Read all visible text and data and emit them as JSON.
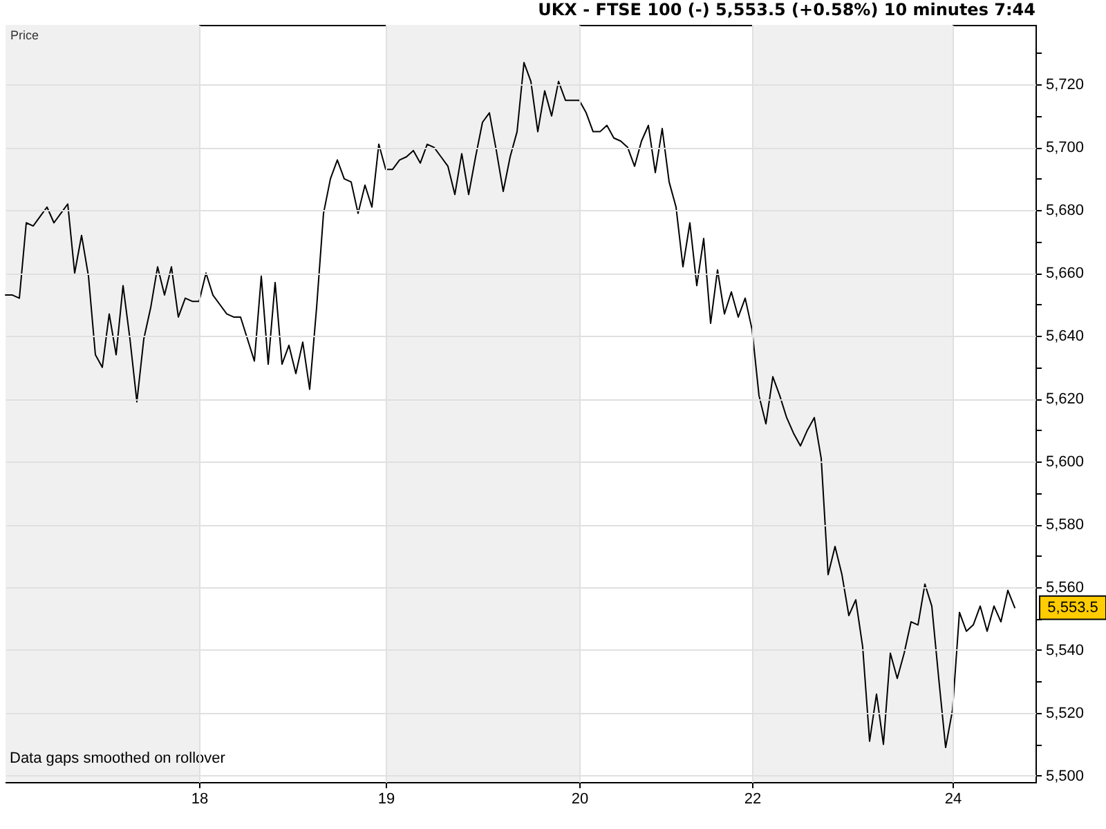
{
  "chart_data": {
    "type": "line",
    "title": "UKX - FTSE 100 (-) 5,553.5 (+0.58%) 10 minutes 7:44",
    "ylabel": "Price",
    "categories": [
      null,
      null,
      null,
      null,
      null,
      null,
      null,
      null,
      null,
      null,
      null,
      null,
      null,
      null,
      null,
      null,
      null,
      null,
      null,
      null,
      null,
      null,
      null,
      null,
      null,
      null,
      null,
      null,
      "18",
      null,
      null,
      null,
      null,
      null,
      null,
      null,
      null,
      null,
      null,
      null,
      null,
      null,
      null,
      null,
      null,
      null,
      null,
      null,
      null,
      null,
      null,
      null,
      null,
      null,
      null,
      "19",
      null,
      null,
      null,
      null,
      null,
      null,
      null,
      null,
      null,
      null,
      null,
      null,
      null,
      null,
      null,
      null,
      null,
      null,
      null,
      null,
      null,
      null,
      null,
      null,
      null,
      null,
      null,
      "20",
      null,
      null,
      null,
      null,
      null,
      null,
      null,
      null,
      null,
      null,
      null,
      null,
      null,
      null,
      null,
      null,
      null,
      null,
      null,
      null,
      null,
      null,
      null,
      null,
      "22",
      null,
      null,
      null,
      null,
      null,
      null,
      null,
      null,
      null,
      null,
      null,
      null,
      null,
      null,
      null,
      null,
      null,
      null,
      null,
      null,
      null,
      null,
      null,
      null,
      null,
      null,
      null,
      null,
      "24",
      null,
      null,
      null,
      null,
      null,
      null,
      null,
      null,
      null,
      null,
      null,
      null
    ],
    "series": [
      {
        "color": "#000000",
        "values": [
          5653,
          5653,
          5652,
          5676,
          5675,
          5678,
          5681,
          5676,
          5679,
          5682,
          5660,
          5672,
          5659,
          5634,
          5630,
          5647,
          5634,
          5656,
          5639,
          5619,
          5639,
          5649,
          5662,
          5653,
          5662,
          5646,
          5652,
          5651,
          5651,
          5660,
          5653,
          5650,
          5647,
          5646,
          5646,
          5639,
          5632,
          5659,
          5631,
          5657,
          5631,
          5637,
          5628,
          5638,
          5623,
          5649,
          5679,
          5690,
          5696,
          5690,
          5689,
          5679,
          5688,
          5681,
          5701,
          5693,
          5693,
          5696,
          5697,
          5699,
          5695,
          5701,
          5700,
          5697,
          5694,
          5685,
          5698,
          5685,
          5697,
          5708,
          5711,
          5699,
          5686,
          5697,
          5705,
          5727,
          5721,
          5705,
          5718,
          5710,
          5721,
          5715,
          5715,
          5715,
          5711,
          5705,
          5705,
          5707,
          5703,
          5702,
          5700,
          5694,
          5702,
          5707,
          5692,
          5706,
          5689,
          5681,
          5662,
          5676,
          5656,
          5671,
          5644,
          5661,
          5647,
          5654,
          5646,
          5652,
          5642,
          5621,
          5612,
          5627,
          5621,
          5614,
          5609,
          5605,
          5610,
          5614,
          5601,
          5564,
          5573,
          5564,
          5551,
          5556,
          5541,
          5511,
          5526,
          5510,
          5539,
          5531,
          5539,
          5549,
          5548,
          5561,
          5554,
          5531,
          5509,
          5521,
          5552,
          5546,
          5548,
          5554,
          5546,
          5554,
          5549,
          5559,
          5553.5,
          null,
          null,
          null
        ]
      }
    ],
    "ylim": [
      5498,
      5739
    ],
    "yticks": [
      {
        "value": 5500,
        "label": "5,500"
      },
      {
        "value": 5510,
        "label": null
      },
      {
        "value": 5520,
        "label": "5,520"
      },
      {
        "value": 5530,
        "label": null
      },
      {
        "value": 5540,
        "label": "5,540"
      },
      {
        "value": 5550,
        "label": null
      },
      {
        "value": 5560,
        "label": "5,560"
      },
      {
        "value": 5570,
        "label": null
      },
      {
        "value": 5580,
        "label": "5,580"
      },
      {
        "value": 5590,
        "label": null
      },
      {
        "value": 5600,
        "label": "5,600"
      },
      {
        "value": 5610,
        "label": null
      },
      {
        "value": 5620,
        "label": "5,620"
      },
      {
        "value": 5630,
        "label": null
      },
      {
        "value": 5640,
        "label": "5,640"
      },
      {
        "value": 5650,
        "label": null
      },
      {
        "value": 5660,
        "label": "5,660"
      },
      {
        "value": 5670,
        "label": null
      },
      {
        "value": 5680,
        "label": "5,680"
      },
      {
        "value": 5690,
        "label": null
      },
      {
        "value": 5700,
        "label": "5,700"
      },
      {
        "value": 5710,
        "label": null
      },
      {
        "value": 5720,
        "label": "5,720"
      },
      {
        "value": 5730,
        "label": null
      }
    ],
    "bands": [
      {
        "axis": "x",
        "from": "19",
        "to": "20",
        "color": "#f0f0f0"
      },
      {
        "axis": "x",
        "from": "22",
        "to": "24",
        "color": "#f0f0f0"
      }
    ],
    "grid": true,
    "marker": "none",
    "line_style": "solid",
    "annotations": [
      "Data gaps smoothed on rollover",
      "5,553.5"
    ]
  }
}
